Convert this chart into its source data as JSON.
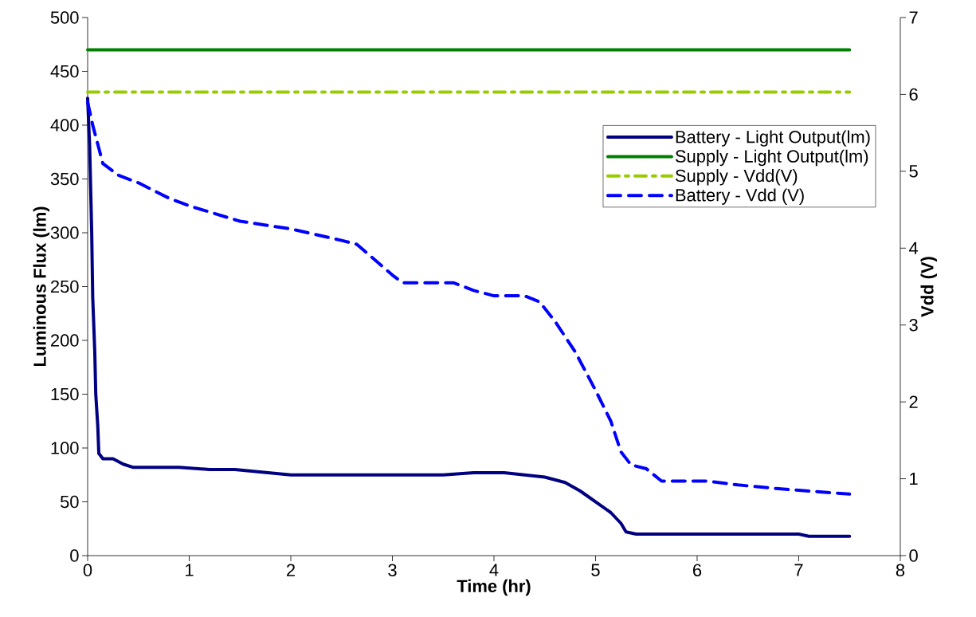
{
  "chart_data": {
    "type": "line",
    "xlabel": "Time (hr)",
    "ylabel": "Luminous Flux (lm)",
    "y2label": "Vdd (V)",
    "xlim": [
      0,
      8
    ],
    "xticks": [
      0,
      1,
      2,
      3,
      4,
      5,
      6,
      7,
      8
    ],
    "ylim": [
      0,
      500
    ],
    "yticks": [
      0,
      50,
      100,
      150,
      200,
      250,
      300,
      350,
      400,
      450,
      500
    ],
    "y2lim": [
      0,
      7
    ],
    "y2ticks": [
      0,
      1,
      2,
      3,
      4,
      5,
      6,
      7
    ],
    "grid": false,
    "legend": "top right",
    "marker": "none",
    "series": [
      {
        "name": "Battery - Light Output(lm)",
        "color": "#000080",
        "line_style": "solid",
        "x": [
          0,
          0.02,
          0.04,
          0.05,
          0.07,
          0.08,
          0.1,
          0.11,
          0.15,
          0.25,
          0.35,
          0.45,
          0.9,
          1.2,
          1.45,
          2.0,
          3.5,
          3.8,
          4.1,
          4.3,
          4.5,
          4.7,
          4.85,
          5.0,
          5.15,
          5.25,
          5.3,
          5.4,
          7.0,
          7.1,
          7.5
        ],
        "values": [
          425,
          380,
          300,
          240,
          190,
          150,
          120,
          95,
          90,
          90,
          85,
          82,
          82,
          80,
          80,
          75,
          75,
          77,
          77,
          75,
          73,
          68,
          60,
          50,
          40,
          30,
          22,
          20,
          20,
          18,
          18
        ]
      },
      {
        "name": "Supply - Light Output(lm)",
        "color": "#008000",
        "line_style": "solid",
        "x": [
          0,
          7.5
        ],
        "values": [
          470,
          470
        ]
      },
      {
        "name": "Supply - Vdd(V)",
        "color": "#99cc00",
        "line_style": "dashdot",
        "axis": "y2",
        "x": [
          0,
          7.5
        ],
        "values": [
          6.03,
          6.03
        ]
      },
      {
        "name": "Battery - Vdd (V)",
        "color": "#0000ff",
        "line_style": "dashed",
        "axis": "y2",
        "x": [
          0,
          0.05,
          0.1,
          0.15,
          0.3,
          0.5,
          0.8,
          1.0,
          1.5,
          2.0,
          2.5,
          2.65,
          3.0,
          3.1,
          3.6,
          3.8,
          4.0,
          4.3,
          4.45,
          4.6,
          4.8,
          5.0,
          5.15,
          5.25,
          5.35,
          5.5,
          5.65,
          6.1,
          6.4,
          6.8,
          7.0,
          7.5
        ],
        "values": [
          5.9,
          5.6,
          5.35,
          5.1,
          4.95,
          4.85,
          4.65,
          4.55,
          4.35,
          4.25,
          4.1,
          4.05,
          3.65,
          3.55,
          3.55,
          3.45,
          3.38,
          3.38,
          3.3,
          3.05,
          2.65,
          2.15,
          1.75,
          1.35,
          1.18,
          1.13,
          0.97,
          0.97,
          0.92,
          0.87,
          0.85,
          0.8
        ]
      }
    ]
  }
}
